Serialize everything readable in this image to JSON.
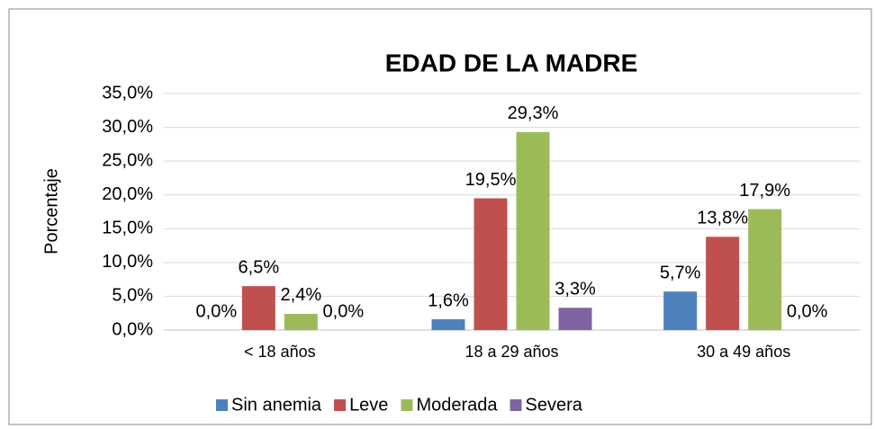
{
  "chart_data": {
    "type": "bar",
    "title": "EDAD DE LA MADRE",
    "y_label": "Porcentaje",
    "categories": [
      "< 18 años",
      "18 a 29 años",
      "30 a 49 años"
    ],
    "series": [
      {
        "name": "Sin anemia",
        "color": "#4f81bd",
        "values": [
          0.0,
          1.6,
          5.7
        ],
        "value_labels": [
          "0,0%",
          "1,6%",
          "5,7%"
        ]
      },
      {
        "name": "Leve",
        "color": "#c0504d",
        "values": [
          6.5,
          19.5,
          13.8
        ],
        "value_labels": [
          "6,5%",
          "19,5%",
          "13,8%"
        ]
      },
      {
        "name": "Moderada",
        "color": "#9bbb59",
        "values": [
          2.4,
          29.3,
          17.9
        ],
        "value_labels": [
          "2,4%",
          "29,3%",
          "17,9%"
        ]
      },
      {
        "name": "Severa",
        "color": "#8064a2",
        "values": [
          0.0,
          3.3,
          0.0
        ],
        "value_labels": [
          "0,0%",
          "3,3%",
          "0,0%"
        ]
      }
    ],
    "ylim": [
      0,
      35
    ],
    "yticks": [
      {
        "value": 0,
        "label": "0,0%"
      },
      {
        "value": 5,
        "label": "5,0%"
      },
      {
        "value": 10,
        "label": "10,0%"
      },
      {
        "value": 15,
        "label": "15,0%"
      },
      {
        "value": 20,
        "label": "20,0%"
      },
      {
        "value": 25,
        "label": "25,0%"
      },
      {
        "value": 30,
        "label": "30,0%"
      },
      {
        "value": 35,
        "label": "35,0%"
      }
    ],
    "grid": true,
    "legend": "bottom"
  }
}
